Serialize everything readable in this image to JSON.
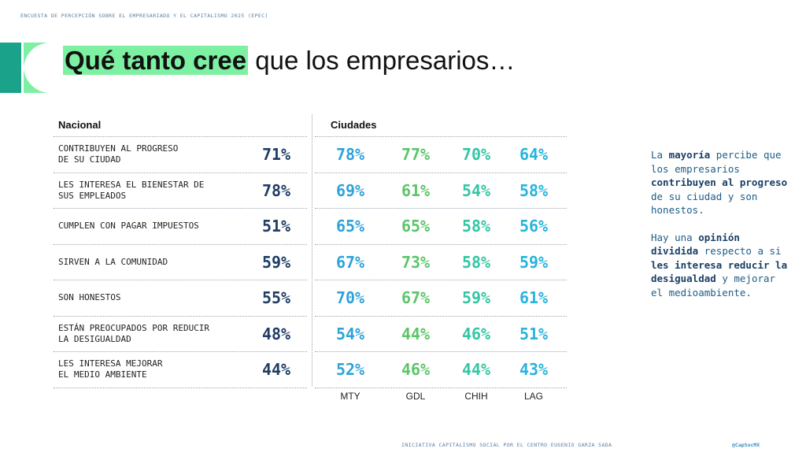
{
  "header": {
    "survey_label": "ENCUESTA DE PERCEPCIÓN SOBRE EL EMPRESARIADO Y EL CAPITALISMO 2025 (EPEC)",
    "title_highlight": "Qué tanto cree",
    "title_rest": " que los empresarios…"
  },
  "colors": {
    "national": "#1f3d66",
    "MTY": "#2fa3d8",
    "GDL": "#5cc56a",
    "CHIH": "#35c6a4",
    "LAG": "#28b4dc",
    "highlight": "#7ef0a2"
  },
  "chart_data": {
    "type": "table",
    "national_header": "Nacional",
    "cities_header": "Ciudades",
    "cities": [
      "MTY",
      "GDL",
      "CHIH",
      "LAG"
    ],
    "rows": [
      {
        "label": "CONTRIBUYEN AL PROGRESO\nDE SU CIUDAD",
        "national": "71%",
        "cities": [
          "78%",
          "77%",
          "70%",
          "64%"
        ]
      },
      {
        "label": "LES INTERESA EL BIENESTAR DE\nSUS EMPLEADOS",
        "national": "78%",
        "cities": [
          "69%",
          "61%",
          "54%",
          "58%"
        ]
      },
      {
        "label": "CUMPLEN CON PAGAR IMPUESTOS",
        "national": "51%",
        "cities": [
          "65%",
          "65%",
          "58%",
          "56%"
        ]
      },
      {
        "label": "SIRVEN A LA COMUNIDAD",
        "national": "59%",
        "cities": [
          "67%",
          "73%",
          "58%",
          "59%"
        ]
      },
      {
        "label": "SON HONESTOS",
        "national": "55%",
        "cities": [
          "70%",
          "67%",
          "59%",
          "61%"
        ]
      },
      {
        "label": "ESTÁN PREOCUPADOS POR REDUCIR\nLA DESIGUALDAD",
        "national": "48%",
        "cities": [
          "54%",
          "44%",
          "46%",
          "51%"
        ]
      },
      {
        "label": "LES INTERESA MEJORAR\nEL MEDIO AMBIENTE",
        "national": "44%",
        "cities": [
          "52%",
          "46%",
          "44%",
          "43%"
        ]
      }
    ]
  },
  "sidebar": {
    "p1": [
      {
        "t": "La ",
        "b": false
      },
      {
        "t": "mayoría",
        "b": true
      },
      {
        "t": " percibe que los empresarios ",
        "b": false
      },
      {
        "t": "contribuyen al progreso",
        "b": true
      },
      {
        "t": " de su ciudad y son honestos.",
        "b": false
      }
    ],
    "p2": [
      {
        "t": "Hay una ",
        "b": false
      },
      {
        "t": "opinión dividida",
        "b": true
      },
      {
        "t": " respecto a si ",
        "b": false
      },
      {
        "t": "les interesa reducir la desigualdad",
        "b": true
      },
      {
        "t": " y mejorar el medioambiente.",
        "b": false
      }
    ]
  },
  "footer": {
    "text": "INICIATIVA CAPITALISMO SOCIAL POR EL CENTRO EUGENIO GARZA SADA",
    "handle": "@CapSocMX"
  }
}
